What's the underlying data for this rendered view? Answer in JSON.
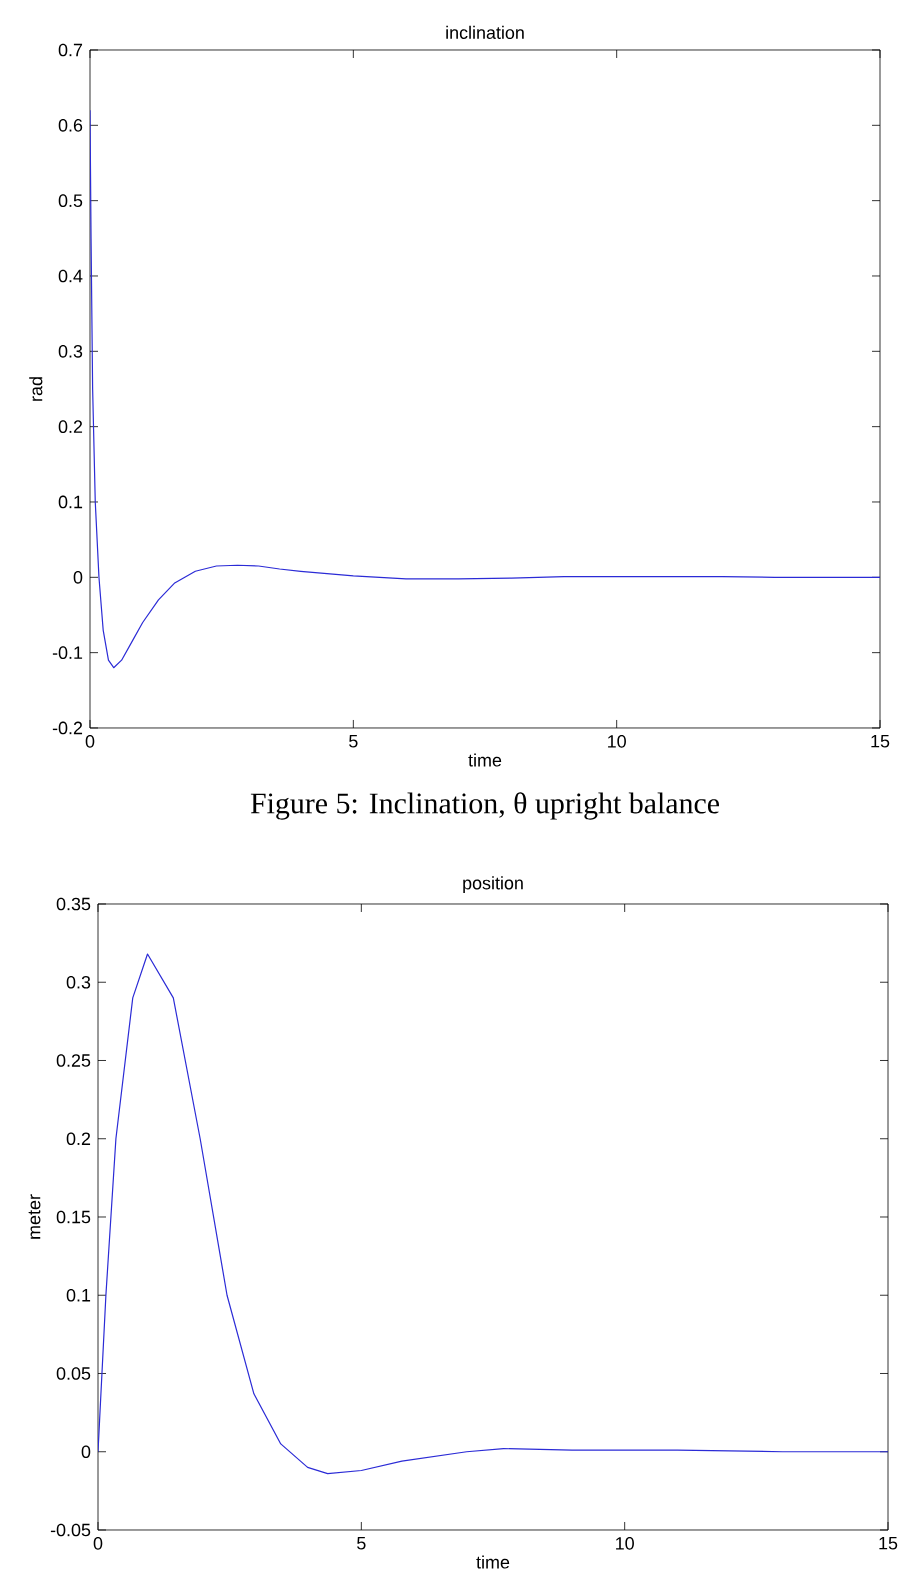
{
  "chart_data": [
    {
      "type": "line",
      "title": "inclination",
      "xlabel": "time",
      "ylabel": "rad",
      "color": "#2b2bd6",
      "x": [
        0,
        0.02,
        0.05,
        0.1,
        0.17,
        0.25,
        0.35,
        0.45,
        0.6,
        0.8,
        1.0,
        1.3,
        1.6,
        2.0,
        2.4,
        2.8,
        3.2,
        3.6,
        4.0,
        4.5,
        5,
        5.5,
        6,
        7,
        8,
        9,
        10,
        11,
        12,
        13,
        14,
        15
      ],
      "values": [
        0.62,
        0.45,
        0.25,
        0.1,
        0,
        -0.07,
        -0.11,
        -0.12,
        -0.11,
        -0.085,
        -0.06,
        -0.03,
        -0.008,
        0.008,
        0.015,
        0.016,
        0.015,
        0.011,
        0.008,
        0.005,
        0.002,
        0,
        -0.002,
        -0.002,
        -0.001,
        0.001,
        0.001,
        0.001,
        0.001,
        0,
        0,
        0
      ],
      "xlim": [
        0,
        15
      ],
      "ylim": [
        -0.2,
        0.7
      ],
      "xticks": [
        0,
        5,
        10,
        15
      ],
      "yticks": [
        -0.2,
        -0.1,
        0,
        0.1,
        0.2,
        0.3,
        0.4,
        0.5,
        0.6,
        0.7
      ],
      "annotations": [
        "Figure 5: Inclination, θ upright balance"
      ]
    },
    {
      "type": "line",
      "title": "position",
      "xlabel": "time",
      "ylabel": "meter",
      "color": "#2b2bd6",
      "x": [
        0,
        0.03,
        0.15,
        0.34,
        0.66,
        0.94,
        1.43,
        1.94,
        2.45,
        2.96,
        3.47,
        3.98,
        4.36,
        5,
        5.77,
        7,
        7.7,
        9,
        11,
        13,
        15
      ],
      "values": [
        0,
        0.02,
        0.1,
        0.2,
        0.29,
        0.318,
        0.29,
        0.2,
        0.1,
        0.037,
        0.005,
        -0.01,
        -0.014,
        -0.012,
        -0.006,
        0,
        0.002,
        0.001,
        0.001,
        0,
        0
      ],
      "xlim": [
        0,
        15
      ],
      "ylim": [
        -0.05,
        0.35
      ],
      "xticks": [
        0,
        5,
        10,
        15
      ],
      "yticks": [
        -0.05,
        0,
        0.05,
        0.1,
        0.15,
        0.2,
        0.25,
        0.3,
        0.35
      ]
    }
  ]
}
